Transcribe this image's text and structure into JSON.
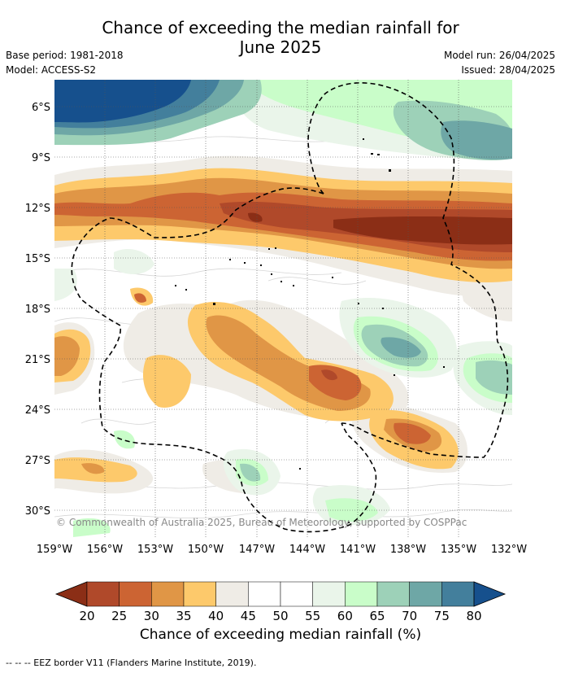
{
  "title_line1": "Chance of exceeding the median rainfall for",
  "title_line2": "June 2025",
  "meta_left": {
    "base_period": "Base period: 1981-2018",
    "model": "Model: ACCESS-S2"
  },
  "meta_right": {
    "model_run": "Model run: 26/04/2025",
    "issued": "Issued: 28/04/2025"
  },
  "copyright": "© Commonwealth of Australia 2025, Bureau of Meteorology, supported by COSPPac",
  "lat_labels": [
    "6°S",
    "9°S",
    "12°S",
    "15°S",
    "18°S",
    "21°S",
    "24°S",
    "27°S",
    "30°S"
  ],
  "lon_labels": [
    "159°W",
    "156°W",
    "153°W",
    "150°W",
    "147°W",
    "144°W",
    "141°W",
    "138°W",
    "135°W",
    "132°W"
  ],
  "colorbar": {
    "ticks": [
      "20",
      "25",
      "30",
      "35",
      "40",
      "45",
      "50",
      "55",
      "60",
      "65",
      "70",
      "75",
      "80"
    ],
    "colors": [
      "#8b2e16",
      "#b0492a",
      "#cc6433",
      "#e09646",
      "#fdc96b",
      "#efece6",
      "#ffffff",
      "#ffffff",
      "#eaf5ea",
      "#c9fdc9",
      "#9dd1b8",
      "#6ea7a6",
      "#437f9c",
      "#16508d"
    ],
    "label": "Chance of exceeding median rainfall (%)"
  },
  "footer": "--  --  -- EEZ border V11 (Flanders Marine Institute, 2019)."
}
